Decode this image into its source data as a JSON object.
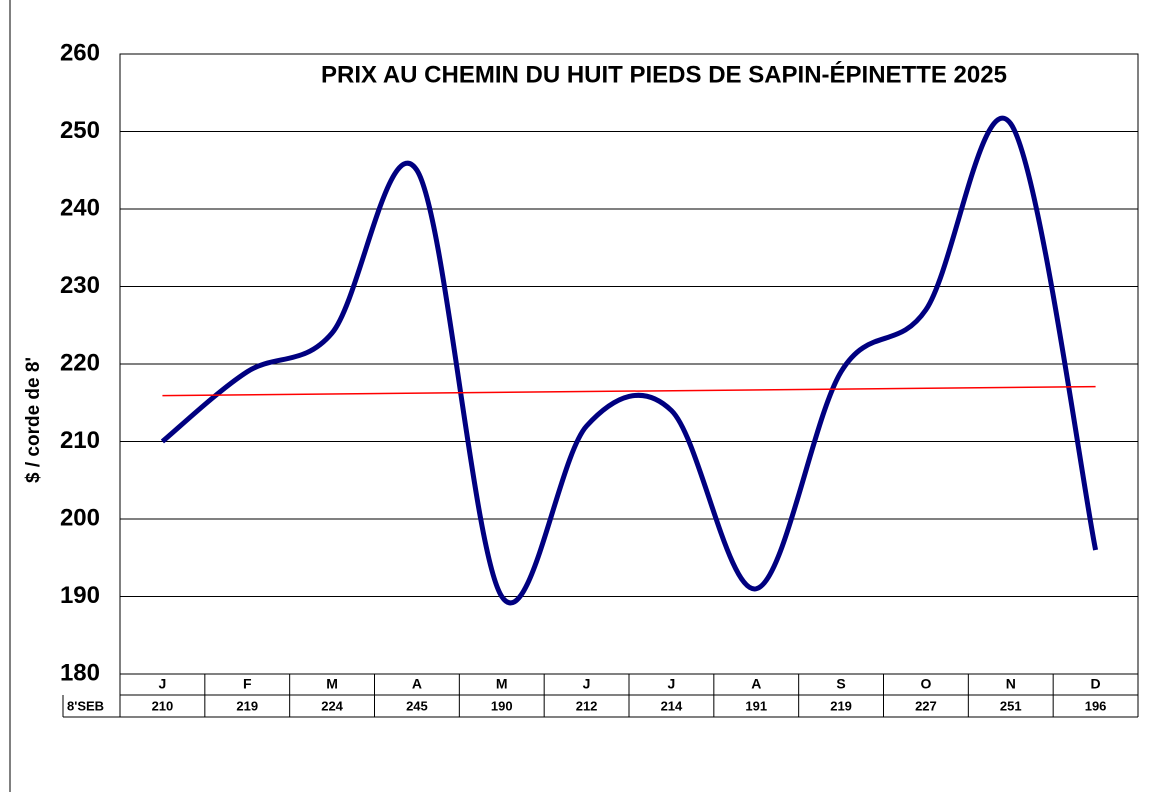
{
  "chart_data": {
    "type": "line",
    "title": "PRIX AU CHEMIN DU HUIT PIEDS DE SAPIN-ÉPINETTE 2025",
    "y_label": "$ / corde de 8'",
    "categories": [
      "J",
      "F",
      "M",
      "A",
      "M",
      "J",
      "J",
      "A",
      "S",
      "O",
      "N",
      "D"
    ],
    "series": [
      {
        "name": "8'SEB",
        "color": "#000080",
        "values": [
          210,
          219,
          224,
          245,
          190,
          212,
          214,
          191,
          219,
          227,
          251,
          196
        ]
      }
    ],
    "ylim": [
      180,
      260
    ],
    "yticks": [
      180,
      190,
      200,
      210,
      220,
      230,
      240,
      250,
      260
    ],
    "grid": true,
    "smooth": true,
    "data_table": true,
    "trendline": {
      "type": "linear",
      "color": "#ff0000"
    }
  }
}
